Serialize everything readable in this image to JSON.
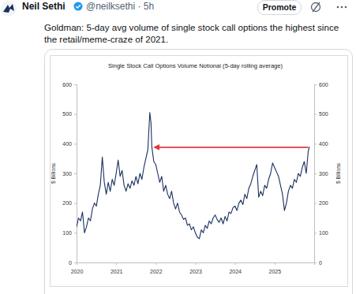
{
  "post": {
    "author": "Neil Sethi",
    "meta": "@neilksethi · 5h",
    "button": "Promote",
    "text": "Goldman: 5-day avg volume of single stock call options the highest since the retail/meme-craze of 2021."
  },
  "chart_data": {
    "type": "line",
    "title": "Single Stock Call Options Volume Notional (5-day rolling average)",
    "y_label": "$ Billions",
    "y2_label": "$ Billions",
    "color": "#1b2f5e",
    "x": [
      2020.0,
      2020.05,
      2020.1,
      2020.15,
      2020.2,
      2020.25,
      2020.3,
      2020.35,
      2020.4,
      2020.45,
      2020.5,
      2020.55,
      2020.6,
      2020.65,
      2020.7,
      2020.75,
      2020.8,
      2020.85,
      2020.9,
      2020.95,
      2021.0,
      2021.05,
      2021.1,
      2021.15,
      2021.2,
      2021.25,
      2021.3,
      2021.35,
      2021.4,
      2021.45,
      2021.5,
      2021.55,
      2021.6,
      2021.65,
      2021.7,
      2021.75,
      2021.8,
      2021.85,
      2021.88,
      2021.9,
      2021.95,
      2022.0,
      2022.05,
      2022.1,
      2022.15,
      2022.2,
      2022.25,
      2022.3,
      2022.35,
      2022.4,
      2022.45,
      2022.5,
      2022.55,
      2022.6,
      2022.65,
      2022.7,
      2022.75,
      2022.8,
      2022.85,
      2022.9,
      2022.95,
      2023.0,
      2023.05,
      2023.1,
      2023.15,
      2023.2,
      2023.25,
      2023.3,
      2023.35,
      2023.4,
      2023.45,
      2023.5,
      2023.55,
      2023.6,
      2023.65,
      2023.7,
      2023.75,
      2023.8,
      2023.85,
      2023.9,
      2023.95,
      2024.0,
      2024.05,
      2024.1,
      2024.15,
      2024.2,
      2024.25,
      2024.3,
      2024.35,
      2024.4,
      2024.45,
      2024.5,
      2024.55,
      2024.6,
      2024.65,
      2024.7,
      2024.75,
      2024.8,
      2024.85,
      2024.9,
      2024.95,
      2025.0,
      2025.05,
      2025.1,
      2025.15,
      2025.2,
      2025.25,
      2025.3,
      2025.35,
      2025.4,
      2025.45,
      2025.5,
      2025.55,
      2025.6,
      2025.65,
      2025.7,
      2025.75,
      2025.8,
      2025.85,
      2025.88
    ],
    "values": [
      120,
      150,
      140,
      170,
      100,
      120,
      150,
      140,
      180,
      200,
      190,
      230,
      260,
      355,
      270,
      230,
      270,
      240,
      280,
      260,
      300,
      345,
      290,
      310,
      260,
      240,
      265,
      250,
      275,
      260,
      290,
      265,
      300,
      280,
      320,
      350,
      380,
      505,
      470,
      390,
      340,
      330,
      300,
      270,
      290,
      240,
      260,
      230,
      215,
      240,
      200,
      180,
      200,
      170,
      160,
      145,
      150,
      125,
      130,
      110,
      120,
      100,
      85,
      80,
      110,
      100,
      125,
      115,
      140,
      130,
      150,
      160,
      145,
      135,
      150,
      130,
      155,
      140,
      170,
      165,
      185,
      190,
      175,
      200,
      210,
      195,
      230,
      215,
      250,
      265,
      290,
      310,
      330,
      220,
      240,
      225,
      260,
      250,
      280,
      300,
      335,
      320,
      305,
      290,
      260,
      230,
      175,
      200,
      240,
      260,
      250,
      280,
      270,
      300,
      290,
      320,
      340,
      300,
      375,
      390
    ],
    "xlim": [
      2020,
      2026
    ],
    "xticks": [
      2020,
      2021,
      2022,
      2023,
      2024,
      2025
    ],
    "ylim": [
      0,
      600
    ],
    "yticks": [
      0,
      100,
      200,
      300,
      400,
      500,
      600
    ],
    "y2lim": [
      0,
      600
    ],
    "y2ticks": [
      0,
      100,
      200,
      300,
      400,
      500,
      600
    ],
    "grid": false,
    "annotation": {
      "type": "arrow",
      "x_from": 2025.85,
      "x_to": 2021.97,
      "y": 388,
      "color": "#e0393e"
    }
  }
}
